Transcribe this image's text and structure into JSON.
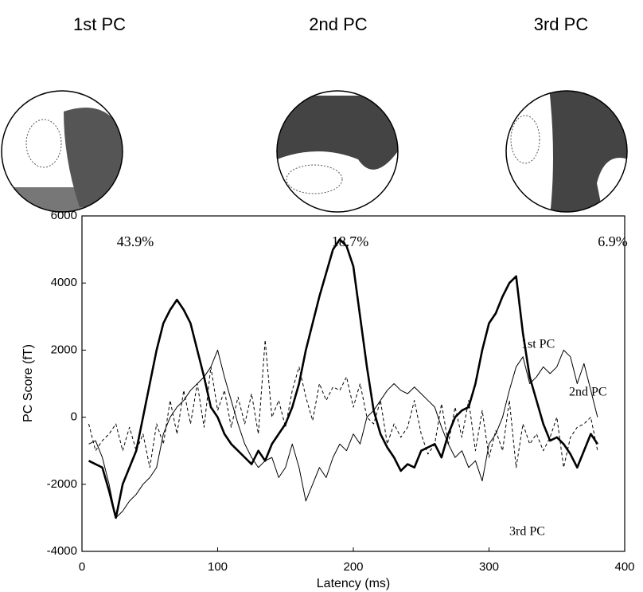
{
  "maps": [
    {
      "title": "1st PC",
      "variance": "43.9%"
    },
    {
      "title": "2nd PC",
      "variance": "18.7%"
    },
    {
      "title": "3rd PC",
      "variance": "6.9%"
    }
  ],
  "chart_data": {
    "type": "line",
    "xlabel": "Latency (ms)",
    "ylabel": "PC Score (fT)",
    "xlim": [
      0,
      400
    ],
    "xticks": [
      0,
      100,
      200,
      300,
      400
    ],
    "ylim": [
      -4000,
      6000
    ],
    "yticks": [
      -4000,
      -2000,
      0,
      2000,
      4000,
      6000
    ],
    "x": [
      5,
      10,
      15,
      20,
      25,
      30,
      35,
      40,
      45,
      50,
      55,
      60,
      65,
      70,
      75,
      80,
      85,
      90,
      95,
      100,
      105,
      110,
      115,
      120,
      125,
      130,
      135,
      140,
      145,
      150,
      155,
      160,
      165,
      170,
      175,
      180,
      185,
      190,
      195,
      200,
      205,
      210,
      215,
      220,
      225,
      230,
      235,
      240,
      245,
      250,
      255,
      260,
      265,
      270,
      275,
      280,
      285,
      290,
      295,
      300,
      305,
      310,
      315,
      320,
      325,
      330,
      335,
      340,
      345,
      350,
      355,
      360,
      365,
      370,
      375,
      380
    ],
    "series": [
      {
        "name": "1st PC",
        "color": "#000000",
        "style": "bold",
        "values": [
          -1300,
          -1400,
          -1500,
          -2200,
          -3000,
          -2000,
          -1500,
          -1000,
          0,
          1000,
          2000,
          2800,
          3200,
          3500,
          3200,
          2800,
          2000,
          1200,
          300,
          0,
          -500,
          -800,
          -1000,
          -1200,
          -1400,
          -1000,
          -1300,
          -800,
          -500,
          -200,
          300,
          1000,
          2000,
          2800,
          3600,
          4300,
          5000,
          5300,
          5100,
          4500,
          3000,
          1500,
          200,
          -500,
          -900,
          -1200,
          -1600,
          -1400,
          -1500,
          -1000,
          -900,
          -800,
          -1200,
          -500,
          0,
          200,
          300,
          1000,
          2000,
          2800,
          3100,
          3600,
          4000,
          4200,
          2500,
          1200,
          500,
          -200,
          -700,
          -600,
          -800,
          -1100,
          -1500,
          -1000,
          -500,
          -800
        ]
      },
      {
        "name": "2nd PC",
        "color": "#000000",
        "style": "solid",
        "values": [
          -800,
          -700,
          -1200,
          -2000,
          -3000,
          -2800,
          -2500,
          -2300,
          -2000,
          -1800,
          -1500,
          -500,
          0,
          300,
          500,
          800,
          1000,
          1200,
          1500,
          2000,
          1200,
          500,
          -200,
          -800,
          -1200,
          -1500,
          -1300,
          -1200,
          -1800,
          -1500,
          -800,
          -1500,
          -2500,
          -2000,
          -1500,
          -1800,
          -1200,
          -800,
          -1000,
          -500,
          -800,
          0,
          200,
          500,
          800,
          1000,
          800,
          700,
          900,
          700,
          500,
          300,
          -300,
          -800,
          -1200,
          -1000,
          -1500,
          -1300,
          -1900,
          -800,
          -500,
          0,
          800,
          1500,
          1800,
          1000,
          1200,
          1500,
          1300,
          1500,
          2000,
          1800,
          1000,
          1600,
          800,
          0
        ]
      },
      {
        "name": "3rd PC",
        "color": "#000000",
        "style": "dashed",
        "values": [
          -200,
          -1000,
          -700,
          -500,
          -200,
          -1000,
          -300,
          -1000,
          -500,
          -1500,
          -200,
          -800,
          500,
          -500,
          800,
          -200,
          1000,
          -300,
          1500,
          200,
          800,
          -300,
          600,
          -200,
          700,
          -500,
          2300,
          0,
          500,
          -300,
          800,
          1500,
          600,
          -100,
          1000,
          500,
          900,
          800,
          1200,
          300,
          1000,
          0,
          -200,
          500,
          -800,
          -200,
          -600,
          -300,
          500,
          -500,
          -1100,
          -800,
          400,
          -800,
          300,
          -600,
          500,
          -1000,
          200,
          -1200,
          -400,
          -1000,
          500,
          -1500,
          -200,
          -800,
          -500,
          -1000,
          -600,
          0,
          -1500,
          -600,
          -300,
          -200,
          0,
          -1000
        ]
      }
    ]
  }
}
